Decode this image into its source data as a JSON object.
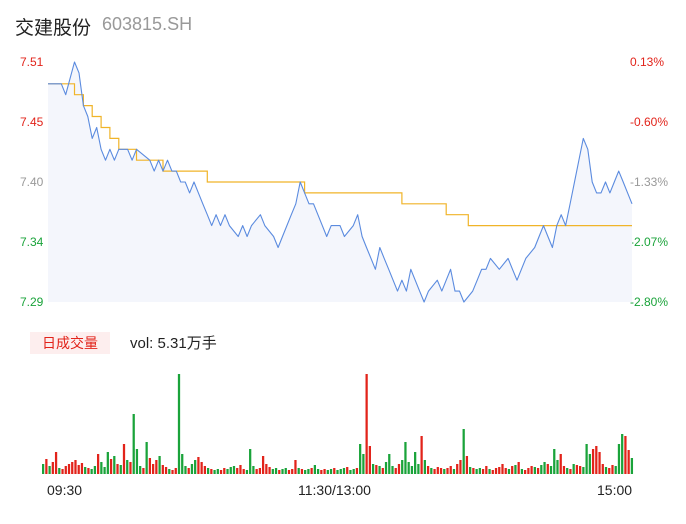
{
  "header": {
    "name": "交建股份",
    "code": "603815.SH"
  },
  "colors": {
    "up": "#e2231a",
    "down": "#1aa33a",
    "flat": "#999999",
    "price_line": "#5b8bdf",
    "avg_line": "#f0b429",
    "area": "#f4f6fc"
  },
  "volume": {
    "badge": "日成交量",
    "text": "vol: 5.31万手"
  },
  "chart_data": [
    {
      "type": "line",
      "title": "",
      "y_ticks_left": [
        "7.51",
        "7.45",
        "7.40",
        "7.34",
        "7.29"
      ],
      "y_ticks_right": [
        "0.13%",
        "-0.60%",
        "-1.33%",
        "-2.07%",
        "-2.80%"
      ],
      "ylim": [
        7.29,
        7.51
      ],
      "x_ticks": [
        "09:30",
        "11:30/13:00",
        "15:00"
      ],
      "series": [
        {
          "role": "price",
          "points": [
            [
              0,
              7.49
            ],
            [
              3,
              7.49
            ],
            [
              4,
              7.48
            ],
            [
              6,
              7.51
            ],
            [
              7,
              7.5
            ],
            [
              8,
              7.47
            ],
            [
              9,
              7.46
            ],
            [
              10,
              7.44
            ],
            [
              11,
              7.45
            ],
            [
              12,
              7.43
            ],
            [
              13,
              7.42
            ],
            [
              14,
              7.43
            ],
            [
              15,
              7.42
            ],
            [
              16,
              7.43
            ],
            [
              18,
              7.43
            ],
            [
              19,
              7.42
            ],
            [
              20,
              7.43
            ],
            [
              23,
              7.42
            ],
            [
              24,
              7.41
            ],
            [
              25,
              7.42
            ],
            [
              26,
              7.41
            ],
            [
              27,
              7.42
            ],
            [
              28,
              7.41
            ],
            [
              29,
              7.41
            ],
            [
              30,
              7.4
            ],
            [
              31,
              7.4
            ],
            [
              32,
              7.39
            ],
            [
              33,
              7.4
            ],
            [
              34,
              7.39
            ],
            [
              35,
              7.38
            ],
            [
              36,
              7.37
            ],
            [
              37,
              7.36
            ],
            [
              38,
              7.37
            ],
            [
              39,
              7.36
            ],
            [
              40,
              7.37
            ],
            [
              41,
              7.36
            ],
            [
              43,
              7.35
            ],
            [
              44,
              7.36
            ],
            [
              45,
              7.35
            ],
            [
              46,
              7.36
            ],
            [
              48,
              7.37
            ],
            [
              49,
              7.36
            ],
            [
              51,
              7.35
            ],
            [
              52,
              7.34
            ],
            [
              53,
              7.35
            ],
            [
              55,
              7.37
            ],
            [
              56,
              7.38
            ],
            [
              57,
              7.4
            ],
            [
              58,
              7.39
            ],
            [
              59,
              7.38
            ],
            [
              60,
              7.38
            ],
            [
              61,
              7.37
            ],
            [
              62,
              7.36
            ],
            [
              63,
              7.35
            ],
            [
              64,
              7.36
            ],
            [
              66,
              7.36
            ],
            [
              67,
              7.35
            ],
            [
              69,
              7.36
            ],
            [
              70,
              7.37
            ],
            [
              71,
              7.35
            ],
            [
              72,
              7.34
            ],
            [
              73,
              7.33
            ],
            [
              74,
              7.32
            ],
            [
              75,
              7.34
            ],
            [
              76,
              7.33
            ],
            [
              77,
              7.32
            ],
            [
              78,
              7.31
            ],
            [
              79,
              7.3
            ],
            [
              80,
              7.31
            ],
            [
              81,
              7.3
            ],
            [
              82,
              7.32
            ],
            [
              83,
              7.31
            ],
            [
              84,
              7.3
            ],
            [
              85,
              7.29
            ],
            [
              86,
              7.3
            ],
            [
              88,
              7.31
            ],
            [
              89,
              7.3
            ],
            [
              90,
              7.31
            ],
            [
              91,
              7.32
            ],
            [
              92,
              7.3
            ],
            [
              93,
              7.3
            ],
            [
              94,
              7.29
            ],
            [
              96,
              7.3
            ],
            [
              97,
              7.31
            ],
            [
              98,
              7.32
            ],
            [
              99,
              7.32
            ],
            [
              100,
              7.33
            ],
            [
              102,
              7.32
            ],
            [
              104,
              7.33
            ],
            [
              105,
              7.32
            ],
            [
              106,
              7.31
            ],
            [
              107,
              7.32
            ],
            [
              108,
              7.33
            ],
            [
              110,
              7.34
            ],
            [
              111,
              7.35
            ],
            [
              112,
              7.36
            ],
            [
              113,
              7.35
            ],
            [
              114,
              7.34
            ],
            [
              115,
              7.36
            ],
            [
              116,
              7.37
            ],
            [
              117,
              7.36
            ],
            [
              118,
              7.38
            ],
            [
              119,
              7.4
            ],
            [
              120,
              7.42
            ],
            [
              121,
              7.44
            ],
            [
              122,
              7.43
            ],
            [
              123,
              7.4
            ],
            [
              124,
              7.39
            ],
            [
              125,
              7.39
            ],
            [
              126,
              7.4
            ],
            [
              127,
              7.39
            ],
            [
              128,
              7.4
            ],
            [
              129,
              7.41
            ],
            [
              130,
              7.4
            ],
            [
              131,
              7.39
            ],
            [
              132,
              7.38
            ]
          ]
        },
        {
          "role": "average",
          "points": [
            [
              0,
              7.49
            ],
            [
              4,
              7.49
            ],
            [
              6,
              7.48
            ],
            [
              8,
              7.47
            ],
            [
              10,
              7.46
            ],
            [
              12,
              7.45
            ],
            [
              14,
              7.44
            ],
            [
              16,
              7.43
            ],
            [
              20,
              7.42
            ],
            [
              26,
              7.41
            ],
            [
              36,
              7.4
            ],
            [
              47,
              7.4
            ],
            [
              58,
              7.39
            ],
            [
              70,
              7.39
            ],
            [
              80,
              7.38
            ],
            [
              90,
              7.37
            ],
            [
              95,
              7.36
            ],
            [
              115,
              7.36
            ],
            [
              132,
              7.36
            ]
          ]
        }
      ]
    },
    {
      "type": "bar",
      "title": "",
      "ylim": [
        0,
        100
      ],
      "series": [
        {
          "role": "volume",
          "values": [
            10,
            15,
            8,
            12,
            22,
            6,
            5,
            8,
            10,
            12,
            14,
            9,
            11,
            7,
            6,
            5,
            8,
            20,
            12,
            7,
            22,
            15,
            18,
            10,
            9,
            30,
            14,
            12,
            60,
            25,
            8,
            6,
            32,
            16,
            10,
            14,
            18,
            9,
            7,
            5,
            4,
            6,
            100,
            20,
            8,
            6,
            10,
            14,
            17,
            12,
            8,
            6,
            5,
            4,
            5,
            4,
            6,
            5,
            7,
            8,
            6,
            9,
            5,
            4,
            25,
            8,
            5,
            6,
            18,
            10,
            7,
            5,
            6,
            4,
            5,
            6,
            4,
            5,
            14,
            6,
            5,
            4,
            5,
            6,
            9,
            5,
            4,
            5,
            4,
            5,
            6,
            4,
            5,
            6,
            7,
            4,
            5,
            6,
            30,
            20,
            100,
            28,
            10,
            9,
            8,
            6,
            12,
            20,
            8,
            6,
            10,
            14,
            32,
            12,
            8,
            22,
            10,
            38,
            14,
            8,
            6,
            5,
            7,
            6,
            5,
            6,
            8,
            5,
            10,
            14,
            45,
            18,
            7,
            6,
            5,
            6,
            5,
            8,
            5,
            4,
            6,
            7,
            10,
            6,
            5,
            8,
            9,
            12,
            5,
            4,
            6,
            8,
            7,
            6,
            9,
            12,
            10,
            8,
            25,
            14,
            20,
            8,
            6,
            5,
            10,
            9,
            8,
            7,
            30,
            20,
            25,
            28,
            22,
            10,
            7,
            6,
            9,
            8,
            30,
            40,
            38,
            24,
            16
          ],
          "colors_pattern": "up_down_mixed"
        }
      ]
    }
  ]
}
